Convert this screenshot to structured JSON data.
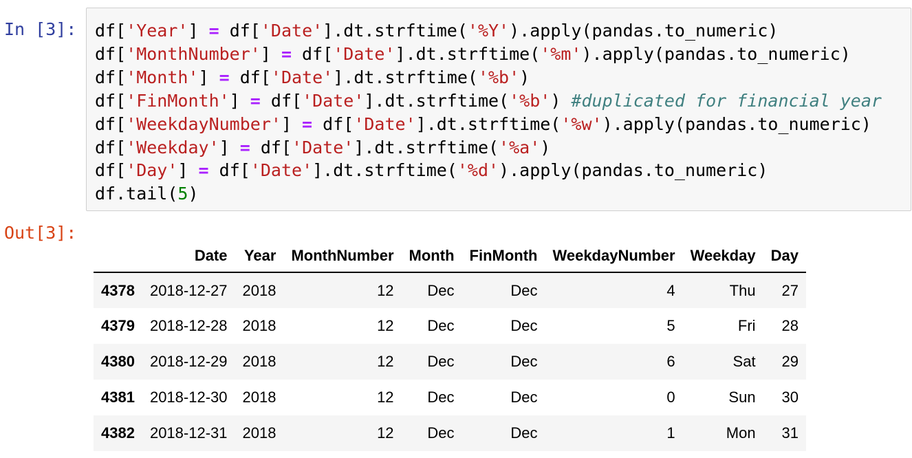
{
  "input_prompt": "In [3]:",
  "output_prompt": "Out[3]:",
  "code_lines": [
    [
      {
        "t": "plain",
        "v": "df["
      },
      {
        "t": "str",
        "v": "'Year'"
      },
      {
        "t": "plain",
        "v": "] "
      },
      {
        "t": "op",
        "v": "="
      },
      {
        "t": "plain",
        "v": " df["
      },
      {
        "t": "str",
        "v": "'Date'"
      },
      {
        "t": "plain",
        "v": "].dt.strftime("
      },
      {
        "t": "str",
        "v": "'%Y'"
      },
      {
        "t": "plain",
        "v": ").apply(pandas.to_numeric)"
      }
    ],
    [
      {
        "t": "plain",
        "v": "df["
      },
      {
        "t": "str",
        "v": "'MonthNumber'"
      },
      {
        "t": "plain",
        "v": "] "
      },
      {
        "t": "op",
        "v": "="
      },
      {
        "t": "plain",
        "v": " df["
      },
      {
        "t": "str",
        "v": "'Date'"
      },
      {
        "t": "plain",
        "v": "].dt.strftime("
      },
      {
        "t": "str",
        "v": "'%m'"
      },
      {
        "t": "plain",
        "v": ").apply(pandas.to_numeric)"
      }
    ],
    [
      {
        "t": "plain",
        "v": "df["
      },
      {
        "t": "str",
        "v": "'Month'"
      },
      {
        "t": "plain",
        "v": "] "
      },
      {
        "t": "op",
        "v": "="
      },
      {
        "t": "plain",
        "v": " df["
      },
      {
        "t": "str",
        "v": "'Date'"
      },
      {
        "t": "plain",
        "v": "].dt.strftime("
      },
      {
        "t": "str",
        "v": "'%b'"
      },
      {
        "t": "plain",
        "v": ")"
      }
    ],
    [
      {
        "t": "plain",
        "v": "df["
      },
      {
        "t": "str",
        "v": "'FinMonth'"
      },
      {
        "t": "plain",
        "v": "] "
      },
      {
        "t": "op",
        "v": "="
      },
      {
        "t": "plain",
        "v": " df["
      },
      {
        "t": "str",
        "v": "'Date'"
      },
      {
        "t": "plain",
        "v": "].dt.strftime("
      },
      {
        "t": "str",
        "v": "'%b'"
      },
      {
        "t": "plain",
        "v": ") "
      },
      {
        "t": "com",
        "v": "#duplicated for financial year"
      }
    ],
    [
      {
        "t": "plain",
        "v": "df["
      },
      {
        "t": "str",
        "v": "'WeekdayNumber'"
      },
      {
        "t": "plain",
        "v": "] "
      },
      {
        "t": "op",
        "v": "="
      },
      {
        "t": "plain",
        "v": " df["
      },
      {
        "t": "str",
        "v": "'Date'"
      },
      {
        "t": "plain",
        "v": "].dt.strftime("
      },
      {
        "t": "str",
        "v": "'%w'"
      },
      {
        "t": "plain",
        "v": ").apply(pandas.to_numeric)"
      }
    ],
    [
      {
        "t": "plain",
        "v": "df["
      },
      {
        "t": "str",
        "v": "'Weekday'"
      },
      {
        "t": "plain",
        "v": "] "
      },
      {
        "t": "op",
        "v": "="
      },
      {
        "t": "plain",
        "v": " df["
      },
      {
        "t": "str",
        "v": "'Date'"
      },
      {
        "t": "plain",
        "v": "].dt.strftime("
      },
      {
        "t": "str",
        "v": "'%a'"
      },
      {
        "t": "plain",
        "v": ")"
      }
    ],
    [
      {
        "t": "plain",
        "v": "df["
      },
      {
        "t": "str",
        "v": "'Day'"
      },
      {
        "t": "plain",
        "v": "] "
      },
      {
        "t": "op",
        "v": "="
      },
      {
        "t": "plain",
        "v": " df["
      },
      {
        "t": "str",
        "v": "'Date'"
      },
      {
        "t": "plain",
        "v": "].dt.strftime("
      },
      {
        "t": "str",
        "v": "'%d'"
      },
      {
        "t": "plain",
        "v": ").apply(pandas.to_numeric)"
      }
    ],
    [
      {
        "t": "plain",
        "v": "df.tail("
      },
      {
        "t": "num",
        "v": "5"
      },
      {
        "t": "plain",
        "v": ")"
      }
    ]
  ],
  "table": {
    "columns": [
      "",
      "Date",
      "Year",
      "MonthNumber",
      "Month",
      "FinMonth",
      "WeekdayNumber",
      "Weekday",
      "Day"
    ],
    "rows": [
      {
        "index": "4378",
        "cells": [
          "2018-12-27",
          "2018",
          "12",
          "Dec",
          "Dec",
          "4",
          "Thu",
          "27"
        ]
      },
      {
        "index": "4379",
        "cells": [
          "2018-12-28",
          "2018",
          "12",
          "Dec",
          "Dec",
          "5",
          "Fri",
          "28"
        ]
      },
      {
        "index": "4380",
        "cells": [
          "2018-12-29",
          "2018",
          "12",
          "Dec",
          "Dec",
          "6",
          "Sat",
          "29"
        ]
      },
      {
        "index": "4381",
        "cells": [
          "2018-12-30",
          "2018",
          "12",
          "Dec",
          "Dec",
          "0",
          "Sun",
          "30"
        ]
      },
      {
        "index": "4382",
        "cells": [
          "2018-12-31",
          "2018",
          "12",
          "Dec",
          "Dec",
          "1",
          "Mon",
          "31"
        ]
      }
    ]
  }
}
